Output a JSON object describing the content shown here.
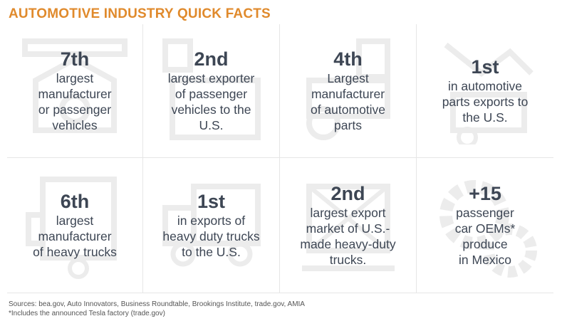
{
  "title": "AUTOMOTIVE INDUSTRY QUICK FACTS",
  "colors": {
    "title": "#e08a2c",
    "text": "#3d4654",
    "icon": "#ececec"
  },
  "facts": [
    {
      "number": "7th",
      "text": "largest\nmanufacturer\nor passenger\nvehicles",
      "icon": "factory-icon"
    },
    {
      "number": "2nd",
      "text": "largest exporter\nof passenger\nvehicles to the\nU.S.",
      "icon": "shipping-icon"
    },
    {
      "number": "4th",
      "text": "Largest\nmanufacturer\nof automotive\nparts",
      "icon": "parts-icon"
    },
    {
      "number": "1st",
      "text": "in automotive\nparts exports to\nthe U.S.",
      "icon": "robot-arm-icon"
    },
    {
      "number": "6th",
      "text": "largest\nmanufacturer\nof heavy trucks",
      "icon": "truck-icon"
    },
    {
      "number": "1st",
      "text": "in exports of\nheavy duty trucks\nto the U.S.",
      "icon": "truck-export-icon"
    },
    {
      "number": "2nd",
      "text": "largest export\nmarket of U.S.-\nmade heavy-duty\ntrucks.",
      "icon": "export-truck-icon"
    },
    {
      "number": "+15",
      "text": "passenger\ncar OEMs*\nproduce\nin Mexico",
      "icon": "gear-icon"
    }
  ],
  "sources": "Sources: bea.gov, Auto Innovators, Business Roundtable, Brookings Institute, trade.gov, AMIA",
  "footnote": "*Includes the announced Tesla factory (trade.gov)"
}
